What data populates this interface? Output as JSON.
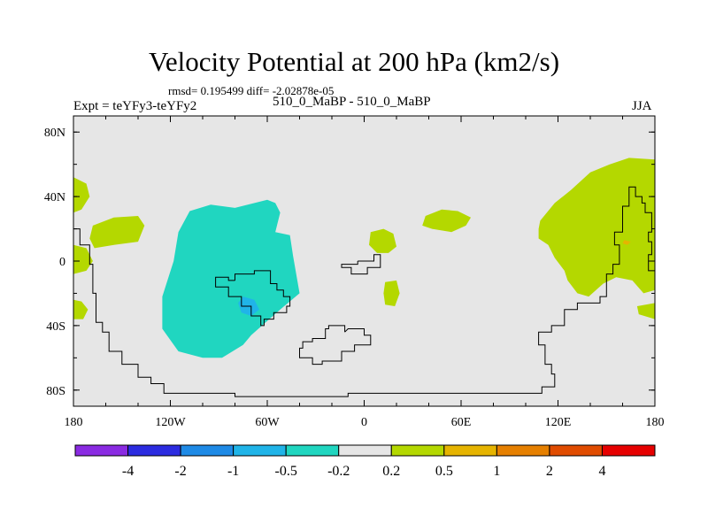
{
  "header": {
    "title": "Velocity Potential at 200 hPa (km2/s)",
    "stats": "rmsd= 0.195499 diff= -2.02878e-05",
    "experiment": "Expt = teYFy3-teYFy2",
    "run_label": "510_0_MaBP - 510_0_MaBP",
    "season": "JJA"
  },
  "chart_data": {
    "type": "heatmap",
    "title": "Velocity Potential at 200 hPa (km2/s)",
    "xlabel": "",
    "ylabel": "",
    "x_range": [
      -180,
      180
    ],
    "y_range": [
      -90,
      90
    ],
    "x_ticks": [
      {
        "value": -180,
        "label": "180"
      },
      {
        "value": -120,
        "label": "120W"
      },
      {
        "value": -60,
        "label": "60W"
      },
      {
        "value": 0,
        "label": "0"
      },
      {
        "value": 60,
        "label": "60E"
      },
      {
        "value": 120,
        "label": "120E"
      },
      {
        "value": 180,
        "label": "180"
      }
    ],
    "y_ticks": [
      {
        "value": 80,
        "label": "80N"
      },
      {
        "value": 40,
        "label": "40N"
      },
      {
        "value": 0,
        "label": "0"
      },
      {
        "value": -40,
        "label": "40S"
      },
      {
        "value": -80,
        "label": "80S"
      }
    ],
    "colorbar": {
      "colors": [
        "#8a2be2",
        "#2c2ce0",
        "#1e8ae6",
        "#20b4e8",
        "#20d6c0",
        "#e6e6e6",
        "#b4d800",
        "#e6b400",
        "#e68000",
        "#e04c00",
        "#e60000"
      ],
      "labels": [
        "-4",
        "-2",
        "-1",
        "-0.5",
        "-0.2",
        "0.2",
        "0.5",
        "1",
        "2",
        "4"
      ],
      "background_bin": "-0.2 to 0.2"
    },
    "regions": [
      {
        "name": "East Pacific / South America anomaly",
        "level": "-0.5 to -0.2",
        "color": "#20d6c0",
        "points": [
          [
            -108,
            31
          ],
          [
            -95,
            35
          ],
          [
            -80,
            33
          ],
          [
            -60,
            38
          ],
          [
            -55,
            36
          ],
          [
            -52,
            30
          ],
          [
            -55,
            18
          ],
          [
            -46,
            16
          ],
          [
            -44,
            3
          ],
          [
            -40,
            -20
          ],
          [
            -52,
            -30
          ],
          [
            -70,
            -46
          ],
          [
            -75,
            -52
          ],
          [
            -88,
            -60
          ],
          [
            -100,
            -60
          ],
          [
            -115,
            -56
          ],
          [
            -125,
            -42
          ],
          [
            -125,
            -22
          ],
          [
            -118,
            0
          ],
          [
            -115,
            18
          ]
        ]
      },
      {
        "name": "Local minimum",
        "level": "-1 to -0.5",
        "color": "#20b4e8",
        "points": [
          [
            -75,
            -22
          ],
          [
            -68,
            -24
          ],
          [
            -65,
            -30
          ],
          [
            -70,
            -34
          ],
          [
            -76,
            -32
          ],
          [
            -78,
            -26
          ]
        ]
      },
      {
        "name": "Central Pacific positive",
        "level": "0.2 to 0.5",
        "color": "#b4d800",
        "points": [
          [
            -168,
            22
          ],
          [
            -155,
            27
          ],
          [
            -140,
            28
          ],
          [
            -136,
            22
          ],
          [
            -140,
            12
          ],
          [
            -155,
            10
          ],
          [
            -167,
            8
          ],
          [
            -170,
            14
          ]
        ]
      },
      {
        "name": "North Pacific edge positive",
        "level": "0.2 to 0.5",
        "color": "#b4d800",
        "points": [
          [
            -180,
            52
          ],
          [
            -172,
            48
          ],
          [
            -170,
            40
          ],
          [
            -175,
            32
          ],
          [
            -180,
            30
          ]
        ]
      },
      {
        "name": "Pacific edge positive low",
        "level": "0.2 to 0.5",
        "color": "#b4d800",
        "points": [
          [
            -180,
            10
          ],
          [
            -172,
            8
          ],
          [
            -168,
            0
          ],
          [
            -172,
            -6
          ],
          [
            -180,
            -8
          ]
        ]
      },
      {
        "name": "South Pacific edge positive",
        "level": "0.2 to 0.5",
        "color": "#b4d800",
        "points": [
          [
            -180,
            -24
          ],
          [
            -175,
            -25
          ],
          [
            -171,
            -30
          ],
          [
            -174,
            -36
          ],
          [
            -180,
            -36
          ]
        ]
      },
      {
        "name": "Africa positive",
        "level": "0.2 to 0.5",
        "color": "#b4d800",
        "points": [
          [
            4,
            18
          ],
          [
            12,
            20
          ],
          [
            18,
            17
          ],
          [
            20,
            9
          ],
          [
            15,
            5
          ],
          [
            8,
            5
          ],
          [
            3,
            10
          ]
        ]
      },
      {
        "name": "Southern Africa positive",
        "level": "0.2 to 0.5",
        "color": "#b4d800",
        "points": [
          [
            13,
            -13
          ],
          [
            20,
            -12
          ],
          [
            22,
            -20
          ],
          [
            19,
            -28
          ],
          [
            13,
            -27
          ],
          [
            12,
            -20
          ]
        ]
      },
      {
        "name": "Arabian Sea positive",
        "level": "0.2 to 0.5",
        "color": "#b4d800",
        "points": [
          [
            38,
            28
          ],
          [
            48,
            32
          ],
          [
            58,
            31
          ],
          [
            66,
            27
          ],
          [
            63,
            22
          ],
          [
            54,
            18
          ],
          [
            42,
            20
          ],
          [
            36,
            22
          ]
        ]
      },
      {
        "name": "Asia / Pacific positive",
        "level": "0.2 to 0.5",
        "color": "#b4d800",
        "points": [
          [
            109,
            25
          ],
          [
            118,
            36
          ],
          [
            128,
            44
          ],
          [
            140,
            55
          ],
          [
            152,
            60
          ],
          [
            164,
            64
          ],
          [
            180,
            63
          ],
          [
            180,
            -18
          ],
          [
            173,
            -20
          ],
          [
            166,
            -12
          ],
          [
            156,
            -10
          ],
          [
            148,
            -14
          ],
          [
            139,
            -22
          ],
          [
            132,
            -20
          ],
          [
            126,
            -12
          ],
          [
            124,
            -6
          ],
          [
            118,
            2
          ],
          [
            114,
            10
          ],
          [
            108,
            14
          ],
          [
            108,
            20
          ]
        ]
      },
      {
        "name": "Asia / Pacific positive south tail",
        "level": "0.2 to 0.5",
        "color": "#b4d800",
        "points": [
          [
            169,
            -28
          ],
          [
            180,
            -26
          ],
          [
            180,
            -36
          ],
          [
            170,
            -33
          ]
        ]
      },
      {
        "name": "Small positive maximum",
        "level": "0.5 to 1",
        "color": "#e6b400",
        "points": [
          [
            161,
            13
          ],
          [
            165,
            12
          ],
          [
            163,
            10
          ],
          [
            160,
            11
          ]
        ]
      }
    ],
    "coastlines": [
      {
        "name": "South America / Antarctica",
        "points": [
          [
            -180,
            20
          ],
          [
            -176,
            20
          ],
          [
            -176,
            10
          ],
          [
            -170,
            10
          ],
          [
            -170,
            -2
          ],
          [
            -168,
            -2
          ],
          [
            -168,
            -20
          ],
          [
            -166,
            -20
          ],
          [
            -166,
            -38
          ],
          [
            -162,
            -38
          ],
          [
            -162,
            -44
          ],
          [
            -158,
            -44
          ],
          [
            -158,
            -56
          ],
          [
            -150,
            -56
          ],
          [
            -150,
            -64
          ],
          [
            -140,
            -64
          ],
          [
            -140,
            -72
          ],
          [
            -132,
            -72
          ],
          [
            -132,
            -76
          ],
          [
            -124,
            -76
          ],
          [
            -124,
            -82
          ],
          [
            -80,
            -82
          ],
          [
            -80,
            -84
          ],
          [
            -10,
            -84
          ],
          [
            -10,
            -82
          ],
          [
            110,
            -82
          ],
          [
            110,
            -78
          ],
          [
            118,
            -78
          ],
          [
            118,
            -70
          ],
          [
            116,
            -70
          ],
          [
            116,
            -64
          ],
          [
            112,
            -64
          ],
          [
            112,
            -52
          ],
          [
            108,
            -52
          ],
          [
            108,
            -44
          ],
          [
            116,
            -44
          ],
          [
            116,
            -40
          ],
          [
            124,
            -40
          ],
          [
            124,
            -30
          ],
          [
            132,
            -30
          ],
          [
            132,
            -26
          ],
          [
            146,
            -26
          ],
          [
            146,
            -22
          ],
          [
            150,
            -22
          ],
          [
            150,
            -8
          ],
          [
            154,
            -8
          ],
          [
            154,
            -2
          ],
          [
            158,
            -2
          ],
          [
            158,
            10
          ],
          [
            155,
            10
          ],
          [
            155,
            18
          ],
          [
            160,
            18
          ],
          [
            160,
            34
          ],
          [
            164,
            34
          ],
          [
            164,
            46
          ],
          [
            168,
            46
          ],
          [
            168,
            40
          ],
          [
            172,
            40
          ],
          [
            172,
            36
          ],
          [
            174,
            36
          ],
          [
            174,
            30
          ],
          [
            178,
            30
          ],
          [
            178,
            18
          ],
          [
            176,
            18
          ],
          [
            176,
            12
          ],
          [
            178,
            12
          ],
          [
            178,
            4
          ],
          [
            176,
            4
          ],
          [
            176,
            -6
          ],
          [
            180,
            -6
          ]
        ]
      },
      {
        "name": "Central South America outline",
        "points": [
          [
            -80,
            -12
          ],
          [
            -80,
            -8
          ],
          [
            -68,
            -8
          ],
          [
            -68,
            -6
          ],
          [
            -58,
            -6
          ],
          [
            -58,
            -14
          ],
          [
            -54,
            -14
          ],
          [
            -54,
            -18
          ],
          [
            -50,
            -18
          ],
          [
            -50,
            -22
          ],
          [
            -46,
            -22
          ],
          [
            -46,
            -28
          ],
          [
            -48,
            -28
          ],
          [
            -48,
            -32
          ],
          [
            -56,
            -32
          ],
          [
            -56,
            -36
          ],
          [
            -62,
            -36
          ],
          [
            -62,
            -40
          ],
          [
            -64,
            -40
          ],
          [
            -64,
            -34
          ],
          [
            -70,
            -34
          ],
          [
            -70,
            -28
          ],
          [
            -76,
            -28
          ],
          [
            -76,
            -22
          ],
          [
            -84,
            -22
          ],
          [
            -84,
            -16
          ],
          [
            -92,
            -16
          ],
          [
            -92,
            -10
          ],
          [
            -84,
            -10
          ],
          [
            -84,
            -12
          ],
          [
            -80,
            -12
          ]
        ]
      },
      {
        "name": "Africa outline",
        "points": [
          [
            -4,
            0
          ],
          [
            6,
            0
          ],
          [
            6,
            4
          ],
          [
            10,
            4
          ],
          [
            10,
            -4
          ],
          [
            2,
            -4
          ],
          [
            2,
            -8
          ],
          [
            -8,
            -8
          ],
          [
            -8,
            -4
          ],
          [
            -14,
            -4
          ],
          [
            -14,
            -2
          ],
          [
            -4,
            -2
          ],
          [
            -4,
            0
          ]
        ]
      },
      {
        "name": "Southern landmass outline",
        "points": [
          [
            -12,
            -44
          ],
          [
            -10,
            -42
          ],
          [
            0,
            -42
          ],
          [
            0,
            -46
          ],
          [
            4,
            -46
          ],
          [
            4,
            -52
          ],
          [
            -6,
            -52
          ],
          [
            -6,
            -56
          ],
          [
            -14,
            -56
          ],
          [
            -14,
            -62
          ],
          [
            -26,
            -62
          ],
          [
            -26,
            -64
          ],
          [
            -32,
            -64
          ],
          [
            -32,
            -60
          ],
          [
            -40,
            -60
          ],
          [
            -40,
            -54
          ],
          [
            -38,
            -54
          ],
          [
            -38,
            -50
          ],
          [
            -32,
            -50
          ],
          [
            -32,
            -48
          ],
          [
            -24,
            -48
          ],
          [
            -24,
            -42
          ],
          [
            -22,
            -42
          ],
          [
            -22,
            -40
          ],
          [
            -12,
            -40
          ],
          [
            -12,
            -44
          ]
        ]
      }
    ]
  }
}
